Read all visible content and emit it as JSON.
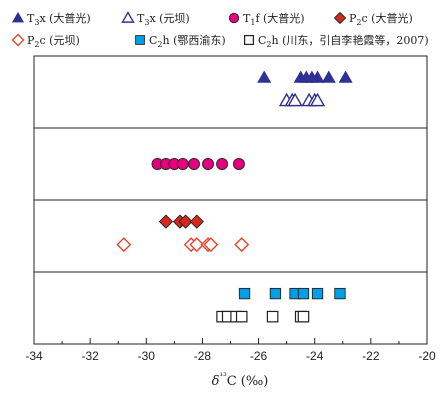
{
  "chart_data": {
    "type": "scatter",
    "xlabel": "δ¹³C (‰)",
    "xlim": [
      -34,
      -20
    ],
    "x_ticks": [
      "-34",
      "-32",
      "-30",
      "-28",
      "-26",
      "-24",
      "-22",
      "-20"
    ],
    "rows": 4,
    "grid_horizontal": true,
    "legend_position": "top",
    "series": [
      {
        "name": "T3x (大普光)",
        "marker": "triangle-filled",
        "color": "#2e3192",
        "row": 1,
        "sub_row": "upper",
        "x": [
          -25.8,
          -24.5,
          -24.3,
          -24.1,
          -23.9,
          -23.5,
          -22.9
        ]
      },
      {
        "name": "T3x (元坝)",
        "marker": "triangle-open",
        "color": "#2e3192",
        "row": 1,
        "sub_row": "lower",
        "x": [
          -25.0,
          -24.8,
          -24.7,
          -24.2,
          -24.0,
          -23.9
        ]
      },
      {
        "name": "T1f (大普光)",
        "marker": "circle-filled",
        "color": "#e6007e",
        "row": 2,
        "sub_row": "middle",
        "x": [
          -29.6,
          -29.3,
          -29.0,
          -28.7,
          -28.3,
          -27.8,
          -27.3,
          -26.7
        ]
      },
      {
        "name": "P2c (大普光)",
        "marker": "diamond-filled",
        "color": "#d6281d",
        "row": 3,
        "sub_row": "upper",
        "x": [
          -29.3,
          -28.8,
          -28.6,
          -28.2
        ]
      },
      {
        "name": "P2c (元坝)",
        "marker": "diamond-open",
        "color": "#e8442b",
        "row": 3,
        "sub_row": "lower",
        "x": [
          -30.8,
          -28.4,
          -28.2,
          -27.8,
          -27.7,
          -26.6
        ]
      },
      {
        "name": "C2h (鄂西渝东)",
        "marker": "square-filled",
        "color": "#00a0e9",
        "row": 4,
        "sub_row": "upper",
        "x": [
          -26.5,
          -25.4,
          -24.7,
          -24.4,
          -23.9,
          -23.1
        ]
      },
      {
        "name": "C2h (川东，引自李艳霞等，2007)",
        "marker": "square-open",
        "color": "#222222",
        "row": 4,
        "sub_row": "lower",
        "x": [
          -27.3,
          -27.1,
          -26.8,
          -26.6,
          -25.5,
          -24.5,
          -24.4
        ]
      }
    ]
  },
  "legend": [
    {
      "name": "T3x (大普光)",
      "main": "T",
      "sub": "3",
      "rest": "x (大普光)"
    },
    {
      "name": "T3x (元坝)",
      "main": "T",
      "sub": "3",
      "rest": "x (元坝)"
    },
    {
      "name": "T1f (大普光)",
      "main": "T",
      "sub": "1",
      "rest": "f (大普光)"
    },
    {
      "name": "P2c (大普光)",
      "main": "P",
      "sub": "2",
      "rest": "c (大普光)"
    },
    {
      "name": "P2c (元坝)",
      "main": "P",
      "sub": "2",
      "rest": "c (元坝)"
    },
    {
      "name": "C2h (鄂西渝东)",
      "main": "C",
      "sub": "2",
      "rest": "h (鄂西渝东)"
    },
    {
      "name": "C2h (川东，引自李艳霞等，2007)",
      "main": "C",
      "sub": "2",
      "rest": "h (川东，引自李艳霞等，2007)"
    }
  ]
}
